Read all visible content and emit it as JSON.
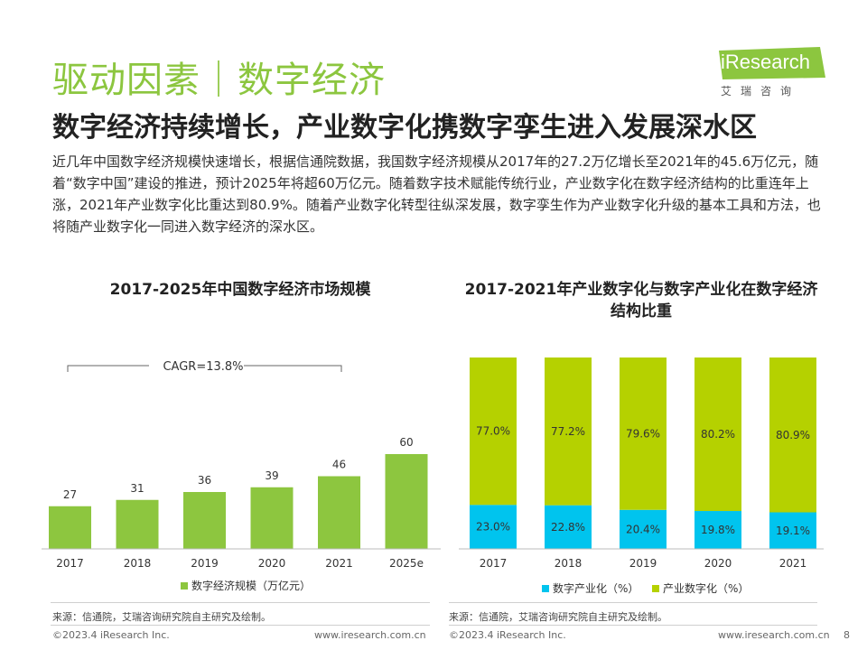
{
  "header": {
    "title": "驱动因素｜数字经济",
    "subtitle": "数字经济持续增长，产业数字化携数字孪生进入发展深水区",
    "intro": "近几年中国数字经济规模快速增长，根据信通院数据，我国数字经济规模从2017年的27.2万亿增长至2021年的45.6万亿元，随着“数字中国”建设的推进，预计2025年将超60万亿元。随着数字技术赋能传统行业，产业数字化在数字经济结构的比重连年上涨，2021年产业数字化比重达到80.9%。随着产业数字化转型往纵深发展，数字孪生作为产业数字化升级的基本工具和方法，也将随产业数字化一同进入数字经济的深水区。"
  },
  "logo": {
    "brand": "iResearch",
    "cn": "艾瑞咨询"
  },
  "colors": {
    "accent": "#8cc63f",
    "bar_green": "#8dc63f",
    "stack_green": "#b5d100",
    "stack_cyan": "#00c4ee"
  },
  "chart_data": [
    {
      "type": "bar",
      "title": "2017-2025年中国数字经济市场规模",
      "categories": [
        "2017",
        "2018",
        "2019",
        "2020",
        "2021",
        "2025e"
      ],
      "series": [
        {
          "name": "数字经济规模（万亿元）",
          "values": [
            27,
            31,
            36,
            39,
            46,
            60
          ]
        }
      ],
      "annotation": "CAGR=13.8%",
      "ylim": [
        0,
        80
      ]
    },
    {
      "type": "bar",
      "stacked": true,
      "title": "2017-2021年产业数字化与数字产业化在数字经济结构比重",
      "categories": [
        "2017",
        "2018",
        "2019",
        "2020",
        "2021"
      ],
      "series": [
        {
          "name": "数字产业化（%）",
          "values": [
            23.0,
            22.8,
            20.4,
            19.8,
            19.1
          ],
          "labels": [
            "23.0%",
            "22.8%",
            "20.4%",
            "19.8%",
            "19.1%"
          ]
        },
        {
          "name": "产业数字化（%）",
          "values": [
            77.0,
            77.2,
            79.6,
            80.2,
            80.9
          ],
          "labels": [
            "77.0%",
            "77.2%",
            "79.6%",
            "80.2%",
            "80.9%"
          ]
        }
      ],
      "ylim": [
        0,
        100
      ]
    }
  ],
  "footer": {
    "source": "来源：信通院，艾瑞咨询研究院自主研究及绘制。",
    "copyright": "©2023.4 iResearch Inc.",
    "url": "www.iresearch.com.cn",
    "page": "8"
  }
}
